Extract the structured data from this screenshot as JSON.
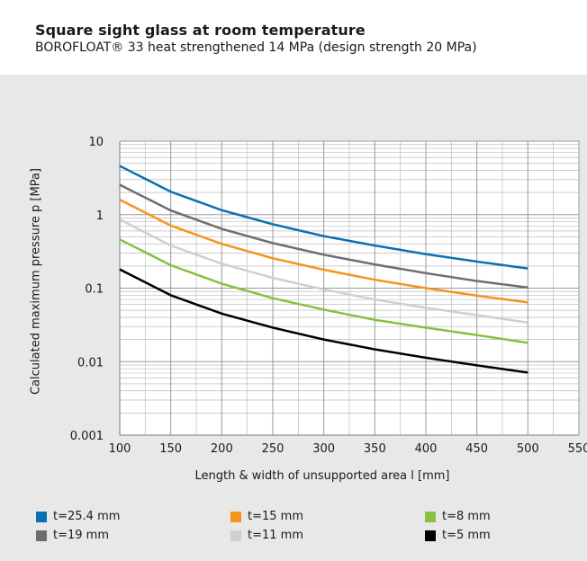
{
  "header": {
    "title": "Square sight glass at room temperature",
    "subtitle": "BOROFLOAT® 33 heat strengthened 14 MPa (design strength 20 MPa)"
  },
  "legend": [
    {
      "label": "t=25.4 mm",
      "color": "#0a6fb3"
    },
    {
      "label": "t=15 mm",
      "color": "#f7941d"
    },
    {
      "label": "t=8 mm",
      "color": "#86c23f"
    },
    {
      "label": "t=19 mm",
      "color": "#6d6e71"
    },
    {
      "label": "t=11 mm",
      "color": "#cfcfcf"
    },
    {
      "label": "t=5 mm",
      "color": "#000000"
    }
  ],
  "chart_data": {
    "type": "line",
    "title": "Square sight glass at room temperature",
    "subtitle": "BOROFLOAT® 33 heat strengthened 14 MPa (design strength 20 MPa)",
    "xlabel": "Length & width of unsupported area l [mm]",
    "ylabel": "Calculated maximum pressure p [MPa]",
    "xlim": [
      100,
      550
    ],
    "ylim": [
      0.001,
      10
    ],
    "yscale": "log",
    "grid": true,
    "legend_position": "bottom",
    "x_ticks": [
      "100",
      "150",
      "200",
      "250",
      "300",
      "350",
      "400",
      "450",
      "500",
      "550"
    ],
    "y_ticks": [
      "10",
      "1",
      "0.1",
      "0.01",
      "0.001"
    ],
    "x": [
      100,
      150,
      200,
      250,
      300,
      350,
      400,
      450,
      500
    ],
    "series": [
      {
        "name": "t=25.4 mm",
        "color": "#0a6fb3",
        "values": [
          4.6,
          2.05,
          1.15,
          0.74,
          0.51,
          0.38,
          0.29,
          0.23,
          0.185
        ]
      },
      {
        "name": "t=19 mm",
        "color": "#6d6e71",
        "values": [
          2.55,
          1.14,
          0.64,
          0.41,
          0.285,
          0.21,
          0.16,
          0.125,
          0.102
        ]
      },
      {
        "name": "t=15 mm",
        "color": "#f7941d",
        "values": [
          1.6,
          0.71,
          0.4,
          0.255,
          0.178,
          0.13,
          0.1,
          0.079,
          0.064
        ]
      },
      {
        "name": "t=11 mm",
        "color": "#cfcfcf",
        "values": [
          0.86,
          0.38,
          0.215,
          0.138,
          0.096,
          0.07,
          0.054,
          0.043,
          0.034
        ]
      },
      {
        "name": "t=8 mm",
        "color": "#86c23f",
        "values": [
          0.46,
          0.205,
          0.115,
          0.073,
          0.051,
          0.037,
          0.029,
          0.023,
          0.018
        ]
      },
      {
        "name": "t=5 mm",
        "color": "#000000",
        "values": [
          0.18,
          0.08,
          0.045,
          0.029,
          0.02,
          0.0147,
          0.0113,
          0.0089,
          0.0071
        ]
      }
    ]
  }
}
